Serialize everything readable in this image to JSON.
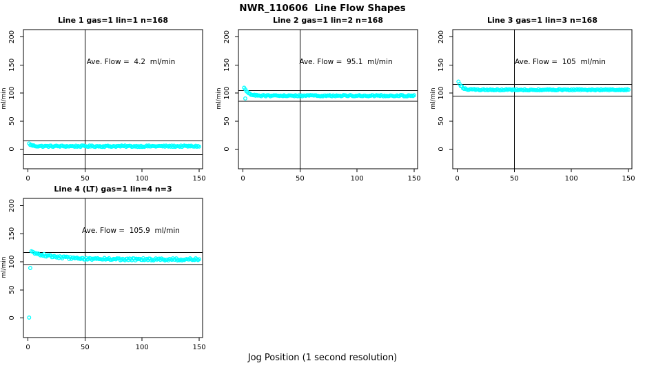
{
  "figure": {
    "title": "NWR_110606  Line Flow Shapes",
    "xlabel": "Jog Position (1 second resolution)",
    "background": "#ffffff",
    "marker_color": "#00FFFF",
    "axis_color": "#000000"
  },
  "chart_data": [
    {
      "type": "scatter",
      "title": "Line 1 gas=1 lin=1 n=168",
      "ylabel": "ml/min",
      "annotation": "Ave. Flow =  4.2  ml/min",
      "ave_flow_ml_min": 4.2,
      "marker_color": "#00FFFF",
      "x_ticks": [
        0,
        50,
        100,
        150
      ],
      "y_ticks": [
        0,
        50,
        100,
        150,
        200
      ],
      "x_domain": [
        -4,
        153
      ],
      "y_domain": [
        -35,
        213
      ],
      "vline_x": 50,
      "hlines": [
        15,
        -10
      ],
      "series": {
        "x_from": 1,
        "x_to": 150,
        "start": 9.5,
        "plateau": 5.2,
        "tau": 2.5,
        "noise": 1.3
      },
      "extra_points": [],
      "shape_points": [
        [
          1,
          9.5
        ],
        [
          3,
          6.5
        ],
        [
          10,
          5.3
        ],
        [
          50,
          5.2
        ],
        [
          100,
          5.2
        ],
        [
          150,
          5.2
        ]
      ]
    },
    {
      "type": "scatter",
      "title": "Line 2 gas=1 lin=2 n=168",
      "ylabel": "ml/min",
      "annotation": "Ave. Flow =  95.1  ml/min",
      "ave_flow_ml_min": 95.1,
      "marker_color": "#00FFFF",
      "x_ticks": [
        0,
        50,
        100,
        150
      ],
      "y_ticks": [
        0,
        50,
        100,
        150,
        200
      ],
      "x_domain": [
        -4,
        153
      ],
      "y_domain": [
        -35,
        213
      ],
      "vline_x": 50,
      "hlines": [
        104.6,
        85.6
      ],
      "series": {
        "x_from": 1,
        "x_to": 150,
        "start": 109.5,
        "plateau": 95.2,
        "tau": 3.5,
        "noise": 1.1
      },
      "extra_points": [
        {
          "x": 2,
          "y": 90.3
        }
      ],
      "shape_points": [
        [
          1,
          109.5
        ],
        [
          2,
          90.3
        ],
        [
          5,
          100
        ],
        [
          10,
          96.5
        ],
        [
          50,
          95.2
        ],
        [
          100,
          95.2
        ],
        [
          150,
          95.2
        ]
      ]
    },
    {
      "type": "scatter",
      "title": "Line 3 gas=1 lin=3 n=168",
      "ylabel": "ml/min",
      "annotation": "Ave. Flow =  105  ml/min",
      "ave_flow_ml_min": 105,
      "marker_color": "#00FFFF",
      "x_ticks": [
        0,
        50,
        100,
        150
      ],
      "y_ticks": [
        0,
        50,
        100,
        150,
        200
      ],
      "x_domain": [
        -4,
        153
      ],
      "y_domain": [
        -35,
        213
      ],
      "vline_x": 50,
      "hlines": [
        115.5,
        94.5
      ],
      "series": {
        "x_from": 1,
        "x_to": 150,
        "start": 121,
        "plateau": 105.8,
        "tau": 2.8,
        "noise": 1.1
      },
      "extra_points": [],
      "shape_points": [
        [
          1,
          121
        ],
        [
          3,
          113
        ],
        [
          10,
          107
        ],
        [
          50,
          105.8
        ],
        [
          100,
          105.8
        ],
        [
          150,
          105.8
        ]
      ]
    },
    {
      "type": "scatter",
      "title": "Line 4 (LT) gas=1 lin=4 n=3",
      "ylabel": "ml/min",
      "annotation": "Ave. Flow =  105.9  ml/min",
      "ave_flow_ml_min": 105.9,
      "marker_color": "#00FFFF",
      "x_ticks": [
        0,
        50,
        100,
        150
      ],
      "y_ticks": [
        0,
        50,
        100,
        150,
        200
      ],
      "x_domain": [
        -4,
        153
      ],
      "y_domain": [
        -35,
        213
      ],
      "vline_x": 50,
      "hlines": [
        116.5,
        95.3
      ],
      "series": {
        "x_from": 3,
        "x_to": 150,
        "start": 117,
        "plateau": 104.3,
        "tau": 22,
        "noise": 2.0
      },
      "extra_points": [
        {
          "x": 1,
          "y": 0.6
        },
        {
          "x": 2,
          "y": 89
        }
      ],
      "shape_points": [
        [
          1,
          0.6
        ],
        [
          2,
          89
        ],
        [
          3,
          117
        ],
        [
          20,
          110
        ],
        [
          50,
          105.5
        ],
        [
          100,
          104.5
        ],
        [
          150,
          104.3
        ]
      ]
    }
  ]
}
